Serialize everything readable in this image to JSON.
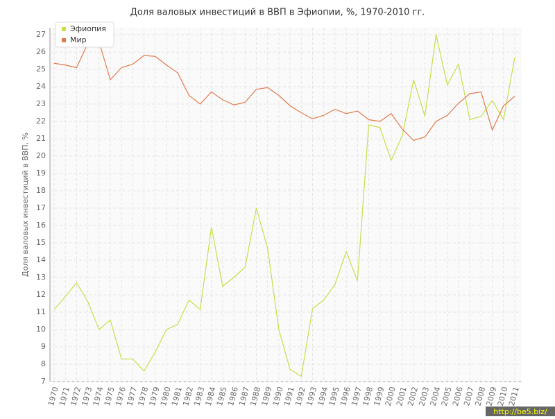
{
  "chart_data": {
    "type": "line",
    "title": "Доля валовых инвестиций в ВВП в Эфиопии, %, 1970-2010 гг.",
    "y_label": "Доля валовых инвестиций в ВВП, %",
    "categories": [
      "1970",
      "1971",
      "1972",
      "1973",
      "1974",
      "1975",
      "1976",
      "1977",
      "1978",
      "1979",
      "1980",
      "1981",
      "1982",
      "1983",
      "1984",
      "1985",
      "1986",
      "1987",
      "1988",
      "1989",
      "1990",
      "1991",
      "1992",
      "1993",
      "1994",
      "1995",
      "1996",
      "1997",
      "1998",
      "1999",
      "2000",
      "2001",
      "2002",
      "2003",
      "2004",
      "2005",
      "2006",
      "2007",
      "2008",
      "2009",
      "2010",
      "2011"
    ],
    "series": [
      {
        "name": "Эфиопия",
        "color": "#c5e04a",
        "values": [
          11.15,
          11.9,
          12.7,
          11.6,
          10.0,
          10.55,
          8.3,
          8.3,
          7.6,
          8.7,
          10.0,
          10.3,
          11.7,
          11.15,
          15.9,
          12.5,
          13.0,
          13.6,
          17.0,
          14.7,
          10.0,
          7.7,
          7.3,
          11.2,
          11.7,
          12.6,
          14.5,
          12.8,
          21.8,
          21.65,
          19.75,
          21.2,
          24.4,
          22.3,
          27.0,
          24.1,
          25.3,
          22.1,
          22.3,
          23.2,
          22.1,
          25.7
        ]
      },
      {
        "name": "Мир",
        "color": "#e07a4a",
        "values": [
          25.35,
          25.25,
          25.1,
          26.5,
          26.6,
          24.4,
          25.1,
          25.3,
          25.8,
          25.75,
          25.25,
          24.8,
          23.5,
          23.0,
          23.7,
          23.25,
          22.95,
          23.1,
          23.85,
          23.95,
          23.5,
          22.9,
          22.5,
          22.15,
          22.35,
          22.7,
          22.45,
          22.6,
          22.1,
          22.0,
          22.45,
          21.55,
          20.9,
          21.1,
          22.0,
          22.35,
          23.05,
          23.6,
          23.7,
          21.5,
          22.9,
          23.45
        ]
      }
    ],
    "ylim": [
      7,
      27
    ],
    "yticks": [
      7,
      8,
      9,
      10,
      11,
      12,
      13,
      14,
      15,
      16,
      17,
      18,
      19,
      20,
      21,
      22,
      23,
      24,
      25,
      26,
      27
    ],
    "grid": true,
    "legend": "top-left",
    "watermark": "http://be5.biz/"
  }
}
